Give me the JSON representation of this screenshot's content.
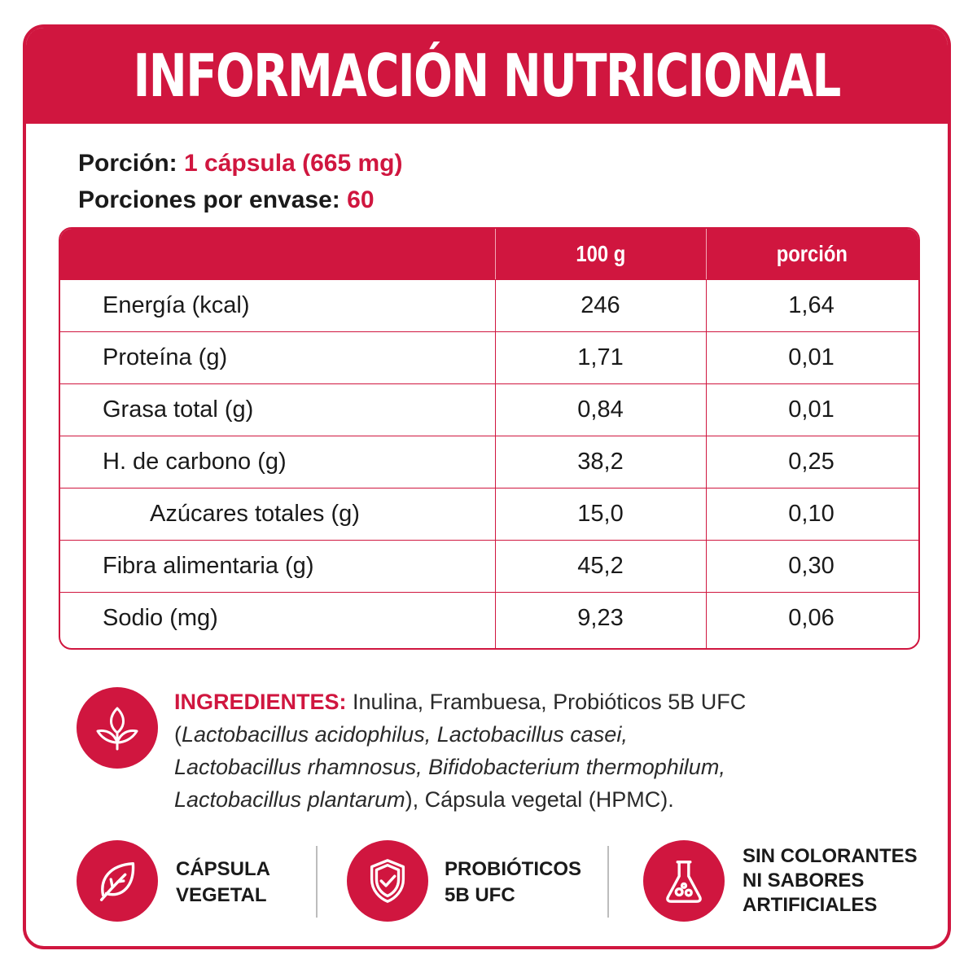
{
  "title": "INFORMACIÓN NUTRICIONAL",
  "serving": {
    "portion_label": "Porción:",
    "portion_value": "1 cápsula (665 mg)",
    "per_container_label": "Porciones por envase:",
    "per_container_value": "60"
  },
  "table": {
    "headers": [
      "",
      "100 g",
      "porción"
    ],
    "rows": [
      {
        "name": "Energía (kcal)",
        "per100": "246",
        "portion": "1,64"
      },
      {
        "name": "Proteína (g)",
        "per100": "1,71",
        "portion": "0,01"
      },
      {
        "name": "Grasa total (g)",
        "per100": "0,84",
        "portion": "0,01"
      },
      {
        "name": "H. de carbono (g)",
        "per100": "38,2",
        "portion": "0,25"
      },
      {
        "name": "Azúcares totales (g)",
        "per100": "15,0",
        "portion": "0,10"
      },
      {
        "name": "Fibra alimentaria (g)",
        "per100": "45,2",
        "portion": "0,30"
      },
      {
        "name": "Sodio (mg)",
        "per100": "9,23",
        "portion": "0,06"
      }
    ]
  },
  "ingredients": {
    "heading": "INGREDIENTES:",
    "t1": " Inulina, Frambuesa, Probióticos 5B UFC",
    "t2": "(",
    "t3": "Lactobacillus acidophilus, Lactobacillus casei,",
    "t4": "Lactobacillus rhamnosus, Bifidobacterium thermophilum,",
    "t5": "Lactobacillus plantarum",
    "t6": "), Cápsula vegetal (HPMC).",
    "icon": "plant-sprout-icon"
  },
  "features": [
    {
      "line1": "CÁPSULA",
      "line2": "VEGETAL",
      "line3": "",
      "icon": "leaf-icon"
    },
    {
      "line1": "PROBIÓTICOS",
      "line2": "5B UFC",
      "line3": "",
      "icon": "shield-check-icon"
    },
    {
      "line1": "SIN COLORANTES",
      "line2": "NI SABORES",
      "line3": "ARTIFICIALES",
      "icon": "flask-icon"
    }
  ],
  "colors": {
    "accent": "#d0163f",
    "text": "#1a1a1a"
  }
}
